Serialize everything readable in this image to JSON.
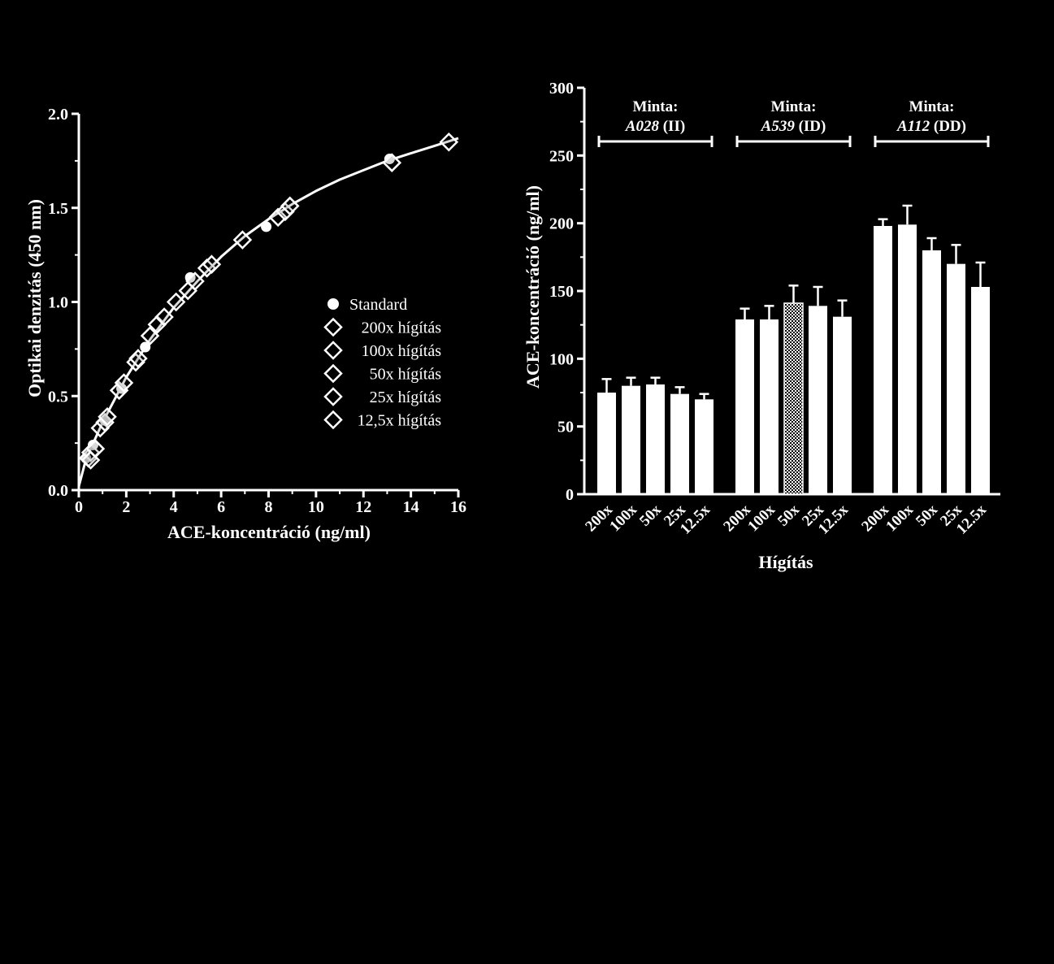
{
  "chart_data": [
    {
      "type": "scatter",
      "xlabel": "ACE-koncentráció (ng/ml)",
      "ylabel": "Optikai denzitás (450 nm)",
      "xlim": [
        0,
        16
      ],
      "ylim": [
        0,
        2.0
      ],
      "x_ticks": [
        "0",
        "2",
        "4",
        "6",
        "8",
        "10",
        "12",
        "14",
        "16"
      ],
      "y_ticks": [
        "0.0",
        "0.5",
        "1.0",
        "1.5",
        "2.0"
      ],
      "legend_position": "center-right",
      "fit_curve": {
        "x": [
          0,
          0.25,
          0.5,
          1,
          2,
          3,
          4,
          5,
          6,
          7,
          8,
          9,
          10,
          11,
          12,
          13,
          14,
          15,
          16
        ],
        "y": [
          0.02,
          0.14,
          0.22,
          0.36,
          0.6,
          0.8,
          0.97,
          1.11,
          1.24,
          1.35,
          1.44,
          1.52,
          1.59,
          1.65,
          1.7,
          1.75,
          1.79,
          1.83,
          1.87
        ]
      },
      "series": [
        {
          "name": "Standard",
          "marker": "circle",
          "points": [
            {
              "x": 0.3,
              "y": 0.17
            },
            {
              "x": 0.6,
              "y": 0.24
            },
            {
              "x": 1.1,
              "y": 0.37
            },
            {
              "x": 1.8,
              "y": 0.54
            },
            {
              "x": 2.8,
              "y": 0.76
            },
            {
              "x": 4.7,
              "y": 1.13
            },
            {
              "x": 7.9,
              "y": 1.4
            },
            {
              "x": 13.1,
              "y": 1.76
            }
          ]
        },
        {
          "name": "200x hígítás",
          "marker": "diamond",
          "points": [
            {
              "x": 0.4,
              "y": 0.17
            },
            {
              "x": 0.5,
              "y": 0.2
            },
            {
              "x": 0.7,
              "y": 0.22
            },
            {
              "x": 0.5,
              "y": 0.16
            }
          ]
        },
        {
          "name": "100x hígítás",
          "marker": "diamond",
          "points": [
            {
              "x": 0.9,
              "y": 0.33
            },
            {
              "x": 1.1,
              "y": 0.36
            },
            {
              "x": 1.2,
              "y": 0.39
            }
          ]
        },
        {
          "name": "50x hígítás",
          "marker": "diamond",
          "points": [
            {
              "x": 1.7,
              "y": 0.53
            },
            {
              "x": 1.9,
              "y": 0.57
            },
            {
              "x": 2.4,
              "y": 0.68
            },
            {
              "x": 2.5,
              "y": 0.7
            }
          ]
        },
        {
          "name": "25x hígítás",
          "marker": "diamond",
          "points": [
            {
              "x": 3.0,
              "y": 0.82
            },
            {
              "x": 3.3,
              "y": 0.88
            },
            {
              "x": 3.6,
              "y": 0.92
            },
            {
              "x": 4.1,
              "y": 1.0
            }
          ]
        },
        {
          "name": "12,5x hígítás",
          "marker": "diamond",
          "points": [
            {
              "x": 4.6,
              "y": 1.06
            },
            {
              "x": 4.9,
              "y": 1.11
            },
            {
              "x": 5.4,
              "y": 1.18
            },
            {
              "x": 5.6,
              "y": 1.2
            },
            {
              "x": 6.9,
              "y": 1.33
            },
            {
              "x": 8.4,
              "y": 1.45
            },
            {
              "x": 8.7,
              "y": 1.48
            },
            {
              "x": 8.9,
              "y": 1.51
            },
            {
              "x": 13.2,
              "y": 1.74
            },
            {
              "x": 15.6,
              "y": 1.85
            }
          ]
        }
      ]
    },
    {
      "type": "bar",
      "xlabel": "Hígítás",
      "ylabel": "ACE-koncentráció (ng/ml)",
      "ylim": [
        0,
        300
      ],
      "y_ticks": [
        "0",
        "50",
        "100",
        "150",
        "200",
        "250",
        "300"
      ],
      "groups": [
        {
          "label_line1": "Minta:",
          "sample": "A028",
          "genotype": "(II)",
          "categories": [
            "200x",
            "100x",
            "50x",
            "25x",
            "12.5x"
          ],
          "values": [
            75,
            80,
            81,
            74,
            70
          ],
          "errors": [
            10,
            6,
            5,
            5,
            4
          ],
          "patterned_index": -1
        },
        {
          "label_line1": "Minta:",
          "sample": "A539",
          "genotype": "(ID)",
          "categories": [
            "200x",
            "100x",
            "50x",
            "25x",
            "12.5x"
          ],
          "values": [
            129,
            129,
            141,
            139,
            131
          ],
          "errors": [
            8,
            10,
            13,
            14,
            12
          ],
          "patterned_index": 2
        },
        {
          "label_line1": "Minta:",
          "sample": "A112",
          "genotype": "(DD)",
          "categories": [
            "200x",
            "100x",
            "50x",
            "25x",
            "12.5x"
          ],
          "values": [
            198,
            199,
            180,
            170,
            153
          ],
          "errors": [
            5,
            14,
            9,
            14,
            18
          ],
          "patterned_index": -1
        }
      ]
    }
  ]
}
